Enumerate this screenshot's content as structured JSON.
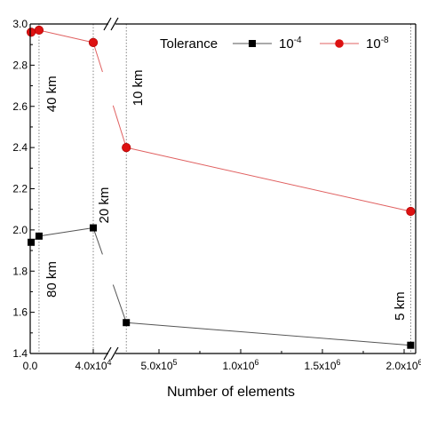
{
  "chart_data": {
    "type": "line",
    "title": "",
    "xlabel": "Number of elements",
    "ylabel": "",
    "ylim": [
      1.4,
      3.0
    ],
    "grid": false,
    "axis_break": {
      "after": 40000,
      "resume": 250000,
      "symbol": "//"
    },
    "x_segments": [
      {
        "range": [
          0,
          40000
        ],
        "ticks": [
          {
            "value": 0,
            "label": "0.0"
          },
          {
            "value": 40000,
            "label": "4.0x10"
          }
        ]
      },
      {
        "range": [
          250000,
          2050000
        ],
        "ticks": [
          {
            "value": 500000,
            "label": "5.0x10"
          },
          {
            "value": 1000000,
            "label": "1.0x10"
          },
          {
            "value": 1500000,
            "label": "1.5x10"
          },
          {
            "value": 2000000,
            "label": "2.0x10"
          }
        ]
      }
    ],
    "x_tick_exponents": [
      "",
      "4",
      "5",
      "6",
      "6",
      "6"
    ],
    "y_ticks": [
      "1.4",
      "1.6",
      "1.8",
      "2.0",
      "2.2",
      "2.4",
      "2.6",
      "2.8",
      "3.0"
    ],
    "legend": {
      "title": "Tolerance",
      "position": "top-right",
      "entries": [
        {
          "base": "10",
          "exponent": "-4",
          "color": "#000000",
          "marker": "square"
        },
        {
          "base": "10",
          "exponent": "-8",
          "color": "#dd1111",
          "marker": "circle"
        }
      ]
    },
    "x": [
      600,
      5600,
      40000,
      300000,
      2040000
    ],
    "series": [
      {
        "color": "#000000",
        "line_color": "#555555",
        "marker": "square",
        "values": [
          1.94,
          1.97,
          2.01,
          1.55,
          1.44
        ]
      },
      {
        "color": "#dd1111",
        "line_color": "#e06060",
        "marker": "circle",
        "values": [
          2.96,
          2.97,
          2.91,
          2.4,
          2.09
        ]
      }
    ],
    "annotations": [
      {
        "text": "40 km",
        "x": 5600,
        "y": 2.66
      },
      {
        "text": "80 km",
        "x": 5600,
        "y": 1.76
      },
      {
        "text": "20 km",
        "x": 40000,
        "y": 2.12
      },
      {
        "text": "10 km",
        "x": 300000,
        "y": 2.69
      },
      {
        "text": "5 km",
        "x": 2040000,
        "y": 1.63
      }
    ],
    "reference_lines_x": [
      5600,
      40000,
      300000,
      2040000
    ]
  }
}
